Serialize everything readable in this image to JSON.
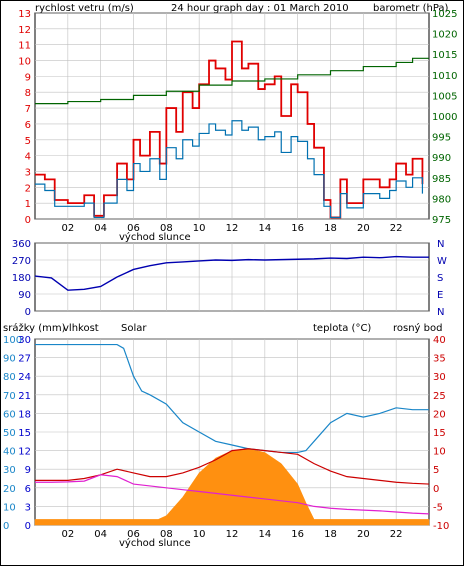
{
  "colors": {
    "wind_gust": "#e00000",
    "wind_avg": "#0070b0",
    "barometer": "#006400",
    "direction": "#0000b0",
    "humidity": "#1a86c8",
    "temperature": "#cc0000",
    "dewpoint": "#e020d0",
    "solar": "#ff9010",
    "rain": "#0000cc",
    "grid": "#c0c0c0"
  },
  "panels": {
    "wind": {
      "title": "24 hour graph day : 01 March 2010",
      "left_label": "rychlost vetru (m/s)",
      "right_label": "barometr (hPa)",
      "sunrise_label": "východ slunce"
    },
    "direction": {
      "compass_labels": [
        "N",
        "W",
        "S",
        "E",
        "N"
      ]
    },
    "climate": {
      "rain_label": "srážky (mm)",
      "humidity_label": "vlhkost",
      "solar_label": "Solar",
      "temp_label": "teplota (°C)",
      "dew_label": "rosný bod",
      "sunrise_label": "východ slunce"
    }
  },
  "chart_data": [
    {
      "type": "line",
      "title": "24 hour graph day : 01 March 2010",
      "xlabel": "",
      "x_tick_labels": [
        "02",
        "04",
        "06",
        "08",
        "10",
        "12",
        "14",
        "16",
        "18",
        "20",
        "22"
      ],
      "xlim": [
        0,
        24
      ],
      "ylim_left": [
        0,
        13
      ],
      "yticks_left": [
        0,
        1,
        2,
        3,
        4,
        5,
        6,
        7,
        8,
        9,
        10,
        11,
        12,
        13
      ],
      "ylim_right": [
        975,
        1025
      ],
      "yticks_right": [
        975,
        980,
        985,
        990,
        995,
        1000,
        1005,
        1010,
        1015,
        1020,
        1025
      ],
      "ylabel_left": "rychlost vetru (m/s)",
      "ylabel_right": "barometr (hPa)",
      "grid": true,
      "series": [
        {
          "name": "wind gust",
          "x": [
            0,
            0.6,
            1.2,
            2,
            3,
            3.6,
            4.2,
            5,
            5.6,
            6,
            6.4,
            7,
            7.6,
            8,
            8.6,
            9,
            9.6,
            10,
            10.6,
            11,
            11.6,
            12,
            12.6,
            13,
            13.6,
            14,
            14.6,
            15,
            15.6,
            16,
            16.6,
            17,
            17.6,
            18,
            18.6,
            19,
            20,
            21,
            21.6,
            22,
            22.6,
            23,
            23.6
          ],
          "values": [
            2.8,
            2.5,
            1.2,
            1.0,
            1.5,
            0.2,
            1.5,
            3.5,
            2.5,
            5.0,
            4.0,
            5.5,
            3.5,
            7.0,
            5.5,
            8.0,
            7.0,
            8.5,
            10.0,
            9.5,
            8.8,
            11.2,
            9.5,
            9.8,
            8.2,
            8.5,
            9.0,
            6.5,
            8.5,
            8.0,
            6.0,
            4.5,
            1.2,
            0.1,
            2.5,
            1.0,
            2.5,
            2.0,
            2.5,
            3.5,
            2.8,
            3.8,
            2.2
          ]
        },
        {
          "name": "wind average",
          "x": [
            0,
            0.6,
            1.2,
            2,
            3,
            3.6,
            4.2,
            5,
            5.6,
            6,
            6.4,
            7,
            7.6,
            8,
            8.6,
            9,
            9.6,
            10,
            10.6,
            11,
            11.6,
            12,
            12.6,
            13,
            13.6,
            14,
            14.6,
            15,
            15.6,
            16,
            16.6,
            17,
            17.6,
            18,
            18.6,
            19,
            20,
            21,
            21.6,
            22,
            22.6,
            23,
            23.6
          ],
          "values": [
            2.2,
            1.8,
            0.8,
            0.8,
            1.0,
            0.1,
            1.0,
            2.5,
            1.8,
            3.5,
            3.0,
            3.8,
            2.5,
            4.5,
            3.8,
            5.0,
            4.6,
            5.4,
            6.0,
            5.6,
            5.3,
            6.2,
            5.6,
            5.8,
            5.0,
            5.2,
            5.5,
            4.2,
            5.2,
            4.9,
            3.8,
            2.8,
            0.8,
            0.1,
            1.6,
            0.7,
            1.6,
            1.3,
            1.8,
            2.4,
            2.0,
            2.6,
            1.6
          ]
        },
        {
          "name": "barometer",
          "x": [
            0,
            2,
            4,
            6,
            8,
            10,
            12,
            14,
            16,
            18,
            20,
            22,
            23,
            24
          ],
          "values": [
            1003,
            1003.5,
            1004,
            1005,
            1006,
            1007.5,
            1008.5,
            1009,
            1010,
            1011,
            1012,
            1013,
            1014,
            1014
          ]
        }
      ]
    },
    {
      "type": "line",
      "xlim": [
        0,
        24
      ],
      "ylim": [
        0,
        360
      ],
      "yticks": [
        0,
        90,
        180,
        270,
        360
      ],
      "series": [
        {
          "name": "wind direction",
          "x": [
            0,
            1,
            2,
            3,
            4,
            5,
            6,
            7,
            8,
            9,
            10,
            11,
            12,
            13,
            14,
            15,
            16,
            17,
            18,
            19,
            20,
            21,
            22,
            23,
            24
          ],
          "values": [
            185,
            175,
            110,
            115,
            130,
            180,
            220,
            240,
            255,
            260,
            265,
            270,
            268,
            272,
            270,
            272,
            274,
            276,
            280,
            278,
            285,
            282,
            288,
            285,
            285
          ]
        }
      ]
    },
    {
      "type": "line",
      "xlim": [
        0,
        24
      ],
      "ylim_left": [
        0,
        100
      ],
      "yticks_humidity": [
        0,
        10,
        20,
        30,
        40,
        50,
        60,
        70,
        80,
        90,
        100
      ],
      "yticks_rain": [
        0,
        3,
        6,
        9,
        12,
        15,
        18,
        21,
        24,
        27,
        30
      ],
      "ylim_right": [
        -10,
        40
      ],
      "yticks_right": [
        -10,
        -5,
        0,
        5,
        10,
        15,
        20,
        25,
        30,
        35,
        40
      ],
      "ylabel_left": "srážky (mm)",
      "ylabel_right": "teplota (°C)",
      "grid": true,
      "series": [
        {
          "name": "vlhkost",
          "x": [
            0,
            2,
            4,
            5,
            5.4,
            6,
            6.5,
            7,
            8,
            9,
            10,
            11,
            12,
            13,
            14,
            15,
            16,
            16.5,
            17,
            18,
            19,
            20,
            21,
            22,
            23,
            24
          ],
          "values": [
            97,
            97,
            97,
            97,
            95,
            80,
            72,
            70,
            65,
            55,
            50,
            45,
            43,
            41,
            40,
            39,
            39,
            40,
            45,
            55,
            60,
            58,
            60,
            63,
            62,
            62
          ]
        },
        {
          "name": "Solar",
          "x": [
            0,
            7,
            7.5,
            8,
            9,
            10,
            11,
            12,
            13,
            14,
            15,
            16,
            16.5,
            17,
            24
          ],
          "values": [
            3,
            3,
            3,
            5,
            15,
            28,
            36,
            40,
            41,
            39,
            33,
            22,
            12,
            3,
            3
          ]
        },
        {
          "name": "teplota",
          "x": [
            0,
            1,
            2,
            3,
            4,
            5,
            6,
            7,
            8,
            9,
            10,
            11,
            12,
            13,
            14,
            15,
            16,
            17,
            18,
            19,
            20,
            21,
            22,
            23,
            24
          ],
          "values": [
            2,
            2,
            2,
            2.5,
            3.5,
            5,
            4,
            3,
            3,
            4,
            5.5,
            7.5,
            10,
            10.5,
            10,
            9.5,
            9,
            6.5,
            4.5,
            3,
            2.5,
            2,
            1.5,
            1.2,
            1
          ]
        },
        {
          "name": "rosný bod",
          "x": [
            0,
            1,
            2,
            3,
            4,
            5,
            6,
            7,
            8,
            9,
            10,
            11,
            12,
            13,
            14,
            15,
            16,
            17,
            18,
            19,
            20,
            21,
            22,
            23,
            24
          ],
          "values": [
            1.5,
            1.5,
            1.6,
            1.8,
            3.5,
            3,
            1,
            0.5,
            0,
            -0.5,
            -1,
            -1.5,
            -2,
            -2.5,
            -3,
            -3.5,
            -4,
            -5,
            -5.5,
            -5.8,
            -6,
            -6.2,
            -6.5,
            -6.8,
            -7
          ]
        }
      ]
    }
  ]
}
